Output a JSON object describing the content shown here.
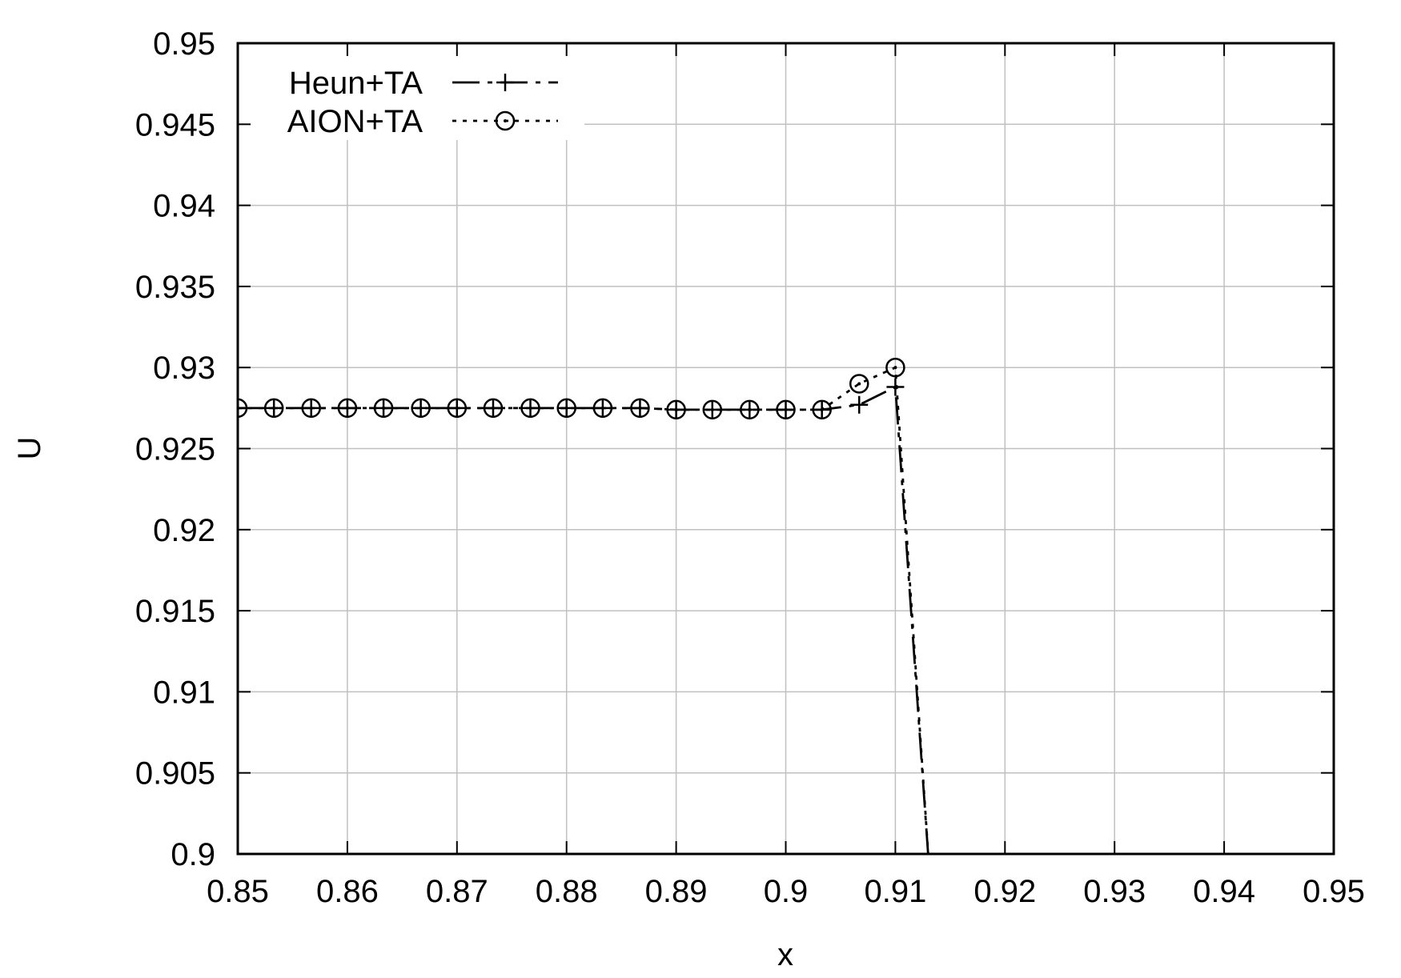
{
  "chart_data": {
    "type": "line",
    "title": "",
    "xlabel": "x",
    "ylabel": "U",
    "xlim": [
      0.85,
      0.95
    ],
    "ylim": [
      0.9,
      0.95
    ],
    "x_ticks": [
      "0.85",
      "0.86",
      "0.87",
      "0.88",
      "0.89",
      "0.9",
      "0.91",
      "0.92",
      "0.93",
      "0.94",
      "0.95"
    ],
    "y_ticks": [
      "0.9",
      "0.905",
      "0.91",
      "0.915",
      "0.92",
      "0.925",
      "0.93",
      "0.935",
      "0.94",
      "0.945",
      "0.95"
    ],
    "grid": true,
    "legend_position": "top-left",
    "series": [
      {
        "name": "Heun+TA",
        "line_style": "dash-dot",
        "marker": "plus",
        "color": "#000000",
        "x": [
          0.85,
          0.8533,
          0.8567,
          0.86,
          0.8633,
          0.8667,
          0.87,
          0.8733,
          0.8767,
          0.88,
          0.8833,
          0.8867,
          0.89,
          0.8933,
          0.8967,
          0.9,
          0.9033,
          0.9067,
          0.91,
          0.9133
        ],
        "y": [
          0.9275,
          0.9275,
          0.9275,
          0.9275,
          0.9275,
          0.9275,
          0.9275,
          0.9275,
          0.9275,
          0.9275,
          0.9275,
          0.9275,
          0.9274,
          0.9274,
          0.9274,
          0.9274,
          0.9274,
          0.9277,
          0.9288,
          0.897
        ]
      },
      {
        "name": "AION+TA",
        "line_style": "dotted",
        "marker": "circle-dot",
        "color": "#000000",
        "x": [
          0.85,
          0.8533,
          0.8567,
          0.86,
          0.8633,
          0.8667,
          0.87,
          0.8733,
          0.8767,
          0.88,
          0.8833,
          0.8867,
          0.89,
          0.8933,
          0.8967,
          0.9,
          0.9033,
          0.9067,
          0.91,
          0.9133
        ],
        "y": [
          0.9275,
          0.9275,
          0.9275,
          0.9275,
          0.9275,
          0.9275,
          0.9275,
          0.9275,
          0.9275,
          0.9275,
          0.9275,
          0.9275,
          0.9274,
          0.9274,
          0.9274,
          0.9274,
          0.9274,
          0.929,
          0.93,
          0.897
        ]
      }
    ]
  }
}
